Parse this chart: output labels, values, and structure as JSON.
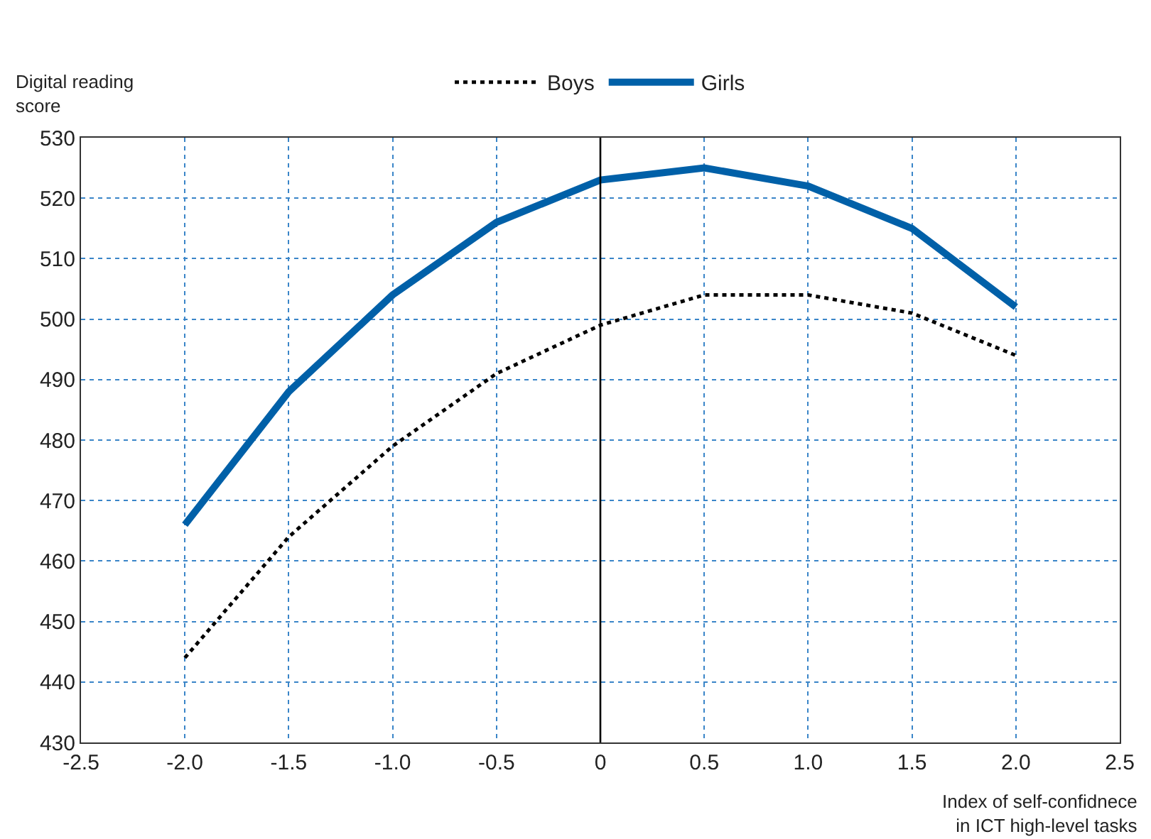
{
  "chart_data": {
    "type": "line",
    "xlabel": "Index of self-confidnece\nin ICT high-level tasks",
    "ylabel": "Digital reading\nscore",
    "x": [
      -2.0,
      -1.5,
      -1.0,
      -0.5,
      0,
      0.5,
      1.0,
      1.5,
      2.0
    ],
    "series": [
      {
        "name": "Boys",
        "color": "#000000",
        "line_style": "dotted",
        "values": [
          444,
          464,
          479,
          491,
          499,
          504,
          504,
          501,
          494
        ]
      },
      {
        "name": "Girls",
        "color": "#0060a8",
        "line_style": "solid",
        "values": [
          466,
          488,
          504,
          516,
          523,
          525,
          522,
          515,
          502
        ]
      }
    ],
    "xlim": [
      -2.5,
      2.5
    ],
    "xticks": [
      {
        "value": -2.5,
        "label": "-2.5"
      },
      {
        "value": -2.0,
        "label": "-2.0"
      },
      {
        "value": -1.5,
        "label": "-1.5"
      },
      {
        "value": -1.0,
        "label": "-1.0"
      },
      {
        "value": -0.5,
        "label": "-0.5"
      },
      {
        "value": 0,
        "label": "0"
      },
      {
        "value": 0.5,
        "label": "0.5"
      },
      {
        "value": 1.0,
        "label": "1.0"
      },
      {
        "value": 1.5,
        "label": "1.5"
      },
      {
        "value": 2.0,
        "label": "2.0"
      },
      {
        "value": 2.5,
        "label": "2.5"
      }
    ],
    "ylim": [
      430,
      530
    ],
    "yticks": [
      430,
      440,
      450,
      460,
      470,
      480,
      490,
      500,
      510,
      520,
      530
    ],
    "ref_lines": [
      {
        "axis": "x",
        "value": 0,
        "color": "#000000",
        "line_style": "solid"
      }
    ],
    "grid": true,
    "legend": "top",
    "marker": "none"
  }
}
